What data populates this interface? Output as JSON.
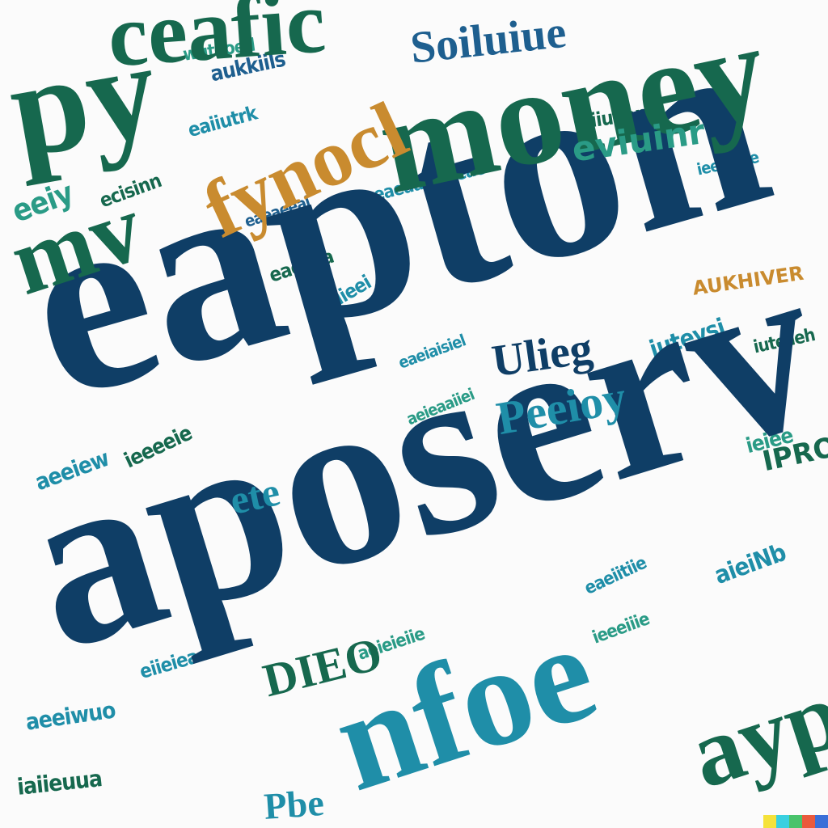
{
  "words": {
    "w1": "eapton",
    "w2": "aposerv",
    "w3": "money",
    "w4": "nfoe",
    "w5": "py",
    "w6": "ceafic",
    "w7": "mv",
    "w8": "ayp",
    "w9": "fynocl",
    "w10": "Soiluiue",
    "w11": "Ulieg",
    "w12": "Peeioy",
    "w13": "ete",
    "w14": "DIEO",
    "w15": "eviuinr",
    "w16": "AUKHIVER",
    "w17": "Pbe",
    "w18": "IPRO"
  },
  "palette": {
    "navy": "#0f3e66",
    "green": "#16684e",
    "teal": "#1f8ea8",
    "gold": "#c98b2f",
    "strip": [
      "#f5e23a",
      "#39d0e0",
      "#49c36b",
      "#ea5a3c",
      "#3a6fd8"
    ]
  }
}
